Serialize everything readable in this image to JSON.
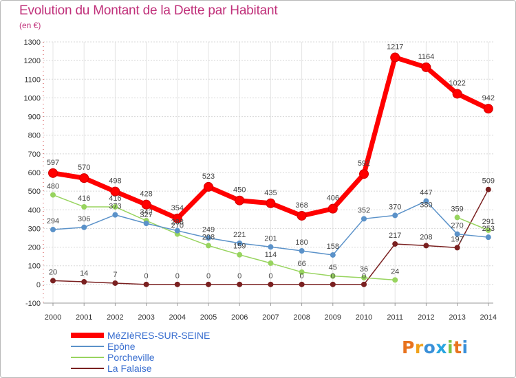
{
  "title": "Evolution du Montant de la Dette par Habitant",
  "subtitle": "(en €)",
  "logo": {
    "text": "Proxiti",
    "colors": [
      "#e8731e",
      "#f0a11a",
      "#3a8fd8",
      "#27a5e0",
      "#7cc242",
      "#e8731e",
      "#3a8fd8"
    ]
  },
  "chart_data": {
    "type": "line",
    "x": [
      2000,
      2001,
      2002,
      2003,
      2004,
      2005,
      2006,
      2007,
      2008,
      2009,
      2010,
      2011,
      2012,
      2013,
      2014
    ],
    "ylim": [
      -100,
      1300
    ],
    "yticks": [
      -100,
      0,
      100,
      200,
      300,
      400,
      500,
      600,
      700,
      800,
      900,
      1000,
      1100,
      1200,
      1300
    ],
    "grid": true,
    "legend": "bottom-left",
    "series": [
      {
        "name": "MéZIèRES-SUR-SEINE",
        "color": "#ff0000",
        "width": 7,
        "marker": 6.5,
        "values": [
          597,
          570,
          498,
          428,
          354,
          523,
          450,
          435,
          368,
          406,
          592,
          1217,
          1164,
          1022,
          942
        ]
      },
      {
        "name": "Epône",
        "color": "#5b92c9",
        "width": 1.5,
        "marker": 3.5,
        "values": [
          294,
          306,
          373,
          327,
          288,
          249,
          221,
          201,
          180,
          158,
          352,
          370,
          447,
          270,
          253
        ]
      },
      {
        "name": "Porcheville",
        "color": "#98d45f",
        "width": 1.5,
        "marker": 3.5,
        "values": [
          480,
          416,
          416,
          342,
          270,
          208,
          159,
          114,
          66,
          45,
          36,
          24,
          null,
          359,
          291
        ]
      },
      {
        "name": "La Falaise",
        "color": "#7a2020",
        "width": 1.5,
        "marker": 3.5,
        "values": [
          20,
          14,
          7,
          0,
          0,
          0,
          0,
          0,
          0,
          0,
          0,
          217,
          208,
          197,
          509
        ]
      }
    ],
    "data_labels": [
      {
        "x": 2000,
        "text": "597"
      },
      {
        "x": 2001,
        "text": "570"
      },
      {
        "x": 2002,
        "text": "498"
      },
      {
        "x": 2003,
        "text": "428"
      },
      {
        "x": 2004,
        "text": "354"
      },
      {
        "x": 2005,
        "text": "523"
      },
      {
        "x": 2006,
        "text": "450"
      },
      {
        "x": 2007,
        "text": "435"
      },
      {
        "x": 2008,
        "text": "368"
      },
      {
        "x": 2009,
        "text": "406"
      },
      {
        "x": 2010,
        "text": "592"
      },
      {
        "x": 2011,
        "text": "1217"
      },
      {
        "x": 2012,
        "text": "1164"
      },
      {
        "x": 2013,
        "text": "1022"
      },
      {
        "x": 2014,
        "text": "942"
      },
      {
        "x": 2000,
        "text": "294"
      },
      {
        "x": 2001,
        "text": "306"
      },
      {
        "x": 2002,
        "text": "373"
      },
      {
        "x": 2003,
        "text": "327"
      },
      {
        "x": 2004,
        "text": "288"
      },
      {
        "x": 2005,
        "text": "249"
      },
      {
        "x": 2006,
        "text": "221"
      },
      {
        "x": 2007,
        "text": "201"
      },
      {
        "x": 2008,
        "text": "180"
      },
      {
        "x": 2009,
        "text": "158"
      },
      {
        "x": 2010,
        "text": "352"
      },
      {
        "x": 2011,
        "text": "370"
      },
      {
        "x": 2012,
        "text": "447"
      },
      {
        "x": 2013,
        "text": "270"
      },
      {
        "x": 2014,
        "text": "253"
      },
      {
        "x": 2000,
        "text": "480"
      },
      {
        "x": 2001,
        "text": "416"
      },
      {
        "x": 2002,
        "text": "416"
      },
      {
        "x": 2003,
        "text": "342"
      },
      {
        "x": 2004,
        "text": "270"
      },
      {
        "x": 2005,
        "text": "208"
      },
      {
        "x": 2006,
        "text": "159"
      },
      {
        "x": 2007,
        "text": "114"
      },
      {
        "x": 2008,
        "text": "66"
      },
      {
        "x": 2009,
        "text": "45"
      },
      {
        "x": 2010,
        "text": "36"
      },
      {
        "x": 2011,
        "text": "24"
      },
      {
        "x": 2012,
        "text": "380"
      },
      {
        "x": 2013,
        "text": "359"
      },
      {
        "x": 2014,
        "text": "291"
      },
      {
        "x": 2000,
        "text": "20"
      },
      {
        "x": 2001,
        "text": "14"
      },
      {
        "x": 2002,
        "text": "7"
      },
      {
        "x": 2003,
        "text": "0"
      },
      {
        "x": 2004,
        "text": "0"
      },
      {
        "x": 2005,
        "text": "0"
      },
      {
        "x": 2006,
        "text": "0"
      },
      {
        "x": 2007,
        "text": "0"
      },
      {
        "x": 2008,
        "text": "0"
      },
      {
        "x": 2009,
        "text": "0"
      },
      {
        "x": 2010,
        "text": "0"
      },
      {
        "x": 2011,
        "text": "217"
      },
      {
        "x": 2012,
        "text": "208"
      },
      {
        "x": 2013,
        "text": "197"
      },
      {
        "x": 2014,
        "text": "509"
      }
    ]
  }
}
